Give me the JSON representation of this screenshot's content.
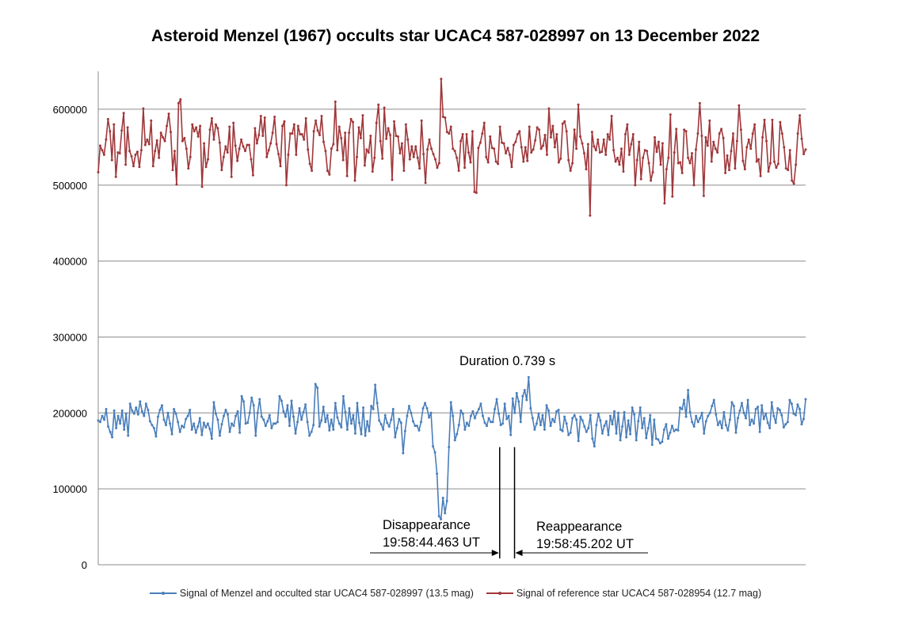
{
  "chart_data": {
    "type": "line",
    "title": "Asteroid Menzel (1967) occults star UCAC4 587-028997 on 13 December 2022",
    "ylim": [
      0,
      650000
    ],
    "yticks": [
      0,
      100000,
      200000,
      300000,
      400000,
      500000,
      600000
    ],
    "grid": true,
    "legend_position": "bottom",
    "series": [
      {
        "name": "Signal of Menzel and occulted star UCAC4 587-028997 (13.5 mag)",
        "color": "#4a7ebb",
        "values": [
          190000,
          188000,
          196000,
          191000,
          205000,
          182000,
          175000,
          168000,
          203000,
          180000,
          196000,
          186000,
          203000,
          178000,
          199000,
          170000,
          212000,
          203000,
          199000,
          207000,
          198000,
          215000,
          202000,
          196000,
          212000,
          204000,
          189000,
          184000,
          180000,
          169000,
          195000,
          204000,
          210000,
          191000,
          184000,
          200000,
          186000,
          172000,
          205000,
          199000,
          188000,
          175000,
          183000,
          181000,
          192000,
          196000,
          204000,
          178000,
          186000,
          174000,
          182000,
          193000,
          171000,
          187000,
          181000,
          186000,
          179000,
          166000,
          214000,
          199000,
          191000,
          170000,
          185000,
          196000,
          204000,
          198000,
          175000,
          186000,
          183000,
          196000,
          202000,
          174000,
          222000,
          215000,
          186000,
          187000,
          200000,
          220000,
          210000,
          170000,
          200000,
          218000,
          195000,
          191000,
          183000,
          189000,
          197000,
          180000,
          186000,
          186000,
          188000,
          222000,
          216000,
          202000,
          195000,
          210000,
          183000,
          216000,
          195000,
          173000,
          188000,
          206000,
          191000,
          201000,
          211000,
          188000,
          170000,
          175000,
          184000,
          238000,
          233000,
          182000,
          190000,
          208000,
          188000,
          197000,
          177000,
          191000,
          178000,
          213000,
          194000,
          186000,
          181000,
          222000,
          201000,
          178000,
          206000,
          186000,
          197000,
          173000,
          213000,
          187000,
          172000,
          207000,
          170000,
          189000,
          176000,
          209000,
          205000,
          237000,
          213000,
          190000,
          185000,
          178000,
          197000,
          187000,
          182000,
          191000,
          205000,
          168000,
          180000,
          192000,
          187000,
          147000,
          176000,
          196000,
          209000,
          200000,
          189000,
          183000,
          183000,
          177000,
          188000,
          206000,
          213000,
          206000,
          194000,
          200000,
          156000,
          148000,
          120000,
          64000,
          60000,
          88000,
          68000,
          84000,
          155000,
          214000,
          196000,
          164000,
          172000,
          184000,
          203000,
          199000,
          178000,
          187000,
          183000,
          196000,
          202000,
          193000,
          200000,
          205000,
          212000,
          196000,
          187000,
          183000,
          193000,
          188000,
          188000,
          205000,
          218000,
          199000,
          184000,
          186000,
          212000,
          192000,
          196000,
          171000,
          219000,
          200000,
          226000,
          215000,
          188000,
          222000,
          230000,
          217000,
          247000,
          206000,
          193000,
          178000,
          186000,
          199000,
          184000,
          197000,
          178000,
          210000,
          203000,
          183000,
          192000,
          188000,
          202000,
          204000,
          178000,
          176000,
          195000,
          186000,
          171000,
          174000,
          193000,
          197000,
          191000,
          163000,
          195000,
          190000,
          182000,
          175000,
          180000,
          197000,
          166000,
          156000,
          184000,
          199000,
          190000,
          173000,
          183000,
          189000,
          171000,
          196000,
          185000,
          202000,
          173000,
          200000,
          164000,
          182000,
          201000,
          168000,
          190000,
          172000,
          207000,
          198000,
          164000,
          189000,
          207000,
          180000,
          193000,
          167000,
          180000,
          197000,
          158000,
          191000,
          166000,
          165000,
          160000,
          162000,
          178000,
          185000,
          166000,
          174000,
          183000,
          176000,
          178000,
          177000,
          207000,
          205000,
          217000,
          195000,
          230000,
          201000,
          188000,
          182000,
          196000,
          188000,
          193000,
          200000,
          173000,
          189000,
          196000,
          200000,
          209000,
          217000,
          198000,
          184000,
          189000,
          180000,
          201000,
          184000,
          177000,
          191000,
          214000,
          209000,
          174000,
          193000,
          203000,
          213000,
          200000,
          193000,
          217000,
          184000,
          191000,
          186000,
          205000,
          208000,
          175000,
          210000,
          192000,
          199000,
          187000,
          180000,
          214000,
          196000,
          187000,
          206000,
          204000,
          197000,
          181000,
          185000,
          188000,
          217000,
          212000,
          199000,
          197000,
          211000,
          205000,
          185000,
          192000,
          218000
        ],
        "x_range": [
          0,
          1
        ]
      },
      {
        "name": "Signal of reference star UCAC4 587-028954 (12.7 mag)",
        "color": "#a0373a",
        "values": [
          517000,
          552000,
          546000,
          540000,
          560000,
          587000,
          571000,
          533000,
          580000,
          511000,
          543000,
          542000,
          572000,
          595000,
          527000,
          576000,
          545000,
          538000,
          525000,
          540000,
          544000,
          524000,
          546000,
          601000,
          553000,
          560000,
          554000,
          585000,
          525000,
          545000,
          559000,
          536000,
          569000,
          563000,
          558000,
          578000,
          594000,
          570000,
          520000,
          545000,
          501000,
          608000,
          613000,
          558000,
          562000,
          548000,
          522000,
          537000,
          580000,
          571000,
          576000,
          564000,
          578000,
          498000,
          555000,
          524000,
          534000,
          573000,
          588000,
          560000,
          580000,
          575000,
          556000,
          520000,
          537000,
          551000,
          543000,
          577000,
          511000,
          582000,
          552000,
          532000,
          548000,
          560000,
          551000,
          545000,
          553000,
          553000,
          534000,
          513000,
          575000,
          555000,
          566000,
          591000,
          565000,
          589000,
          537000,
          546000,
          555000,
          569000,
          590000,
          554000,
          541000,
          525000,
          578000,
          584000,
          500000,
          540000,
          568000,
          568000,
          580000,
          540000,
          578000,
          567000,
          567000,
          560000,
          588000,
          547000,
          528000,
          519000,
          571000,
          585000,
          572000,
          566000,
          591000,
          557000,
          545000,
          519000,
          514000,
          548000,
          554000,
          610000,
          546000,
          577000,
          562000,
          533000,
          569000,
          512000,
          569000,
          587000,
          583000,
          506000,
          537000,
          576000,
          562000,
          592000,
          526000,
          547000,
          543000,
          565000,
          518000,
          536000,
          582000,
          606000,
          558000,
          535000,
          602000,
          561000,
          575000,
          566000,
          507000,
          584000,
          565000,
          564000,
          542000,
          555000,
          519000,
          580000,
          560000,
          534000,
          551000,
          537000,
          551000,
          536000,
          522000,
          585000,
          541000,
          503000,
          547000,
          560000,
          548000,
          541000,
          534000,
          523000,
          529000,
          640000,
          590000,
          589000,
          570000,
          568000,
          577000,
          548000,
          545000,
          536000,
          519000,
          558000,
          567000,
          523000,
          567000,
          543000,
          530000,
          571000,
          491000,
          490000,
          549000,
          556000,
          568000,
          582000,
          537000,
          530000,
          564000,
          549000,
          548000,
          531000,
          528000,
          577000,
          556000,
          555000,
          542000,
          549000,
          540000,
          524000,
          553000,
          557000,
          567000,
          571000,
          550000,
          531000,
          550000,
          532000,
          577000,
          543000,
          547000,
          559000,
          576000,
          573000,
          548000,
          552000,
          566000,
          540000,
          601000,
          563000,
          578000,
          550000,
          567000,
          530000,
          535000,
          581000,
          584000,
          571000,
          533000,
          519000,
          529000,
          573000,
          548000,
          606000,
          564000,
          555000,
          542000,
          521000,
          554000,
          460000,
          570000,
          551000,
          546000,
          560000,
          543000,
          544000,
          560000,
          540000,
          567000,
          560000,
          591000,
          546000,
          531000,
          536000,
          527000,
          548000,
          518000,
          567000,
          580000,
          540000,
          554000,
          567000,
          500000,
          533000,
          557000,
          508000,
          536000,
          546000,
          545000,
          529000,
          506000,
          517000,
          563000,
          544000,
          557000,
          527000,
          555000,
          476000,
          521000,
          536000,
          593000,
          485000,
          543000,
          574000,
          529000,
          530000,
          516000,
          573000,
          571000,
          536000,
          529000,
          542000,
          500000,
          547000,
          568000,
          608000,
          565000,
          486000,
          563000,
          552000,
          585000,
          531000,
          557000,
          548000,
          543000,
          568000,
          574000,
          562000,
          516000,
          539000,
          520000,
          545000,
          568000,
          522000,
          558000,
          605000,
          573000,
          532000,
          521000,
          550000,
          560000,
          548000,
          568000,
          580000,
          531000,
          534000,
          512000,
          563000,
          586000,
          558000,
          518000,
          529000,
          586000,
          531000,
          523000,
          528000,
          583000,
          568000,
          550000,
          522000,
          520000,
          546000,
          506000,
          502000,
          527000,
          568000,
          592000,
          561000,
          541000,
          547000
        ],
        "x_range": [
          0,
          1
        ]
      }
    ],
    "annotations": {
      "duration": "Duration 0.739 s",
      "disappearance_label": "Disappearance",
      "disappearance_time": "19:58:44.463 UT",
      "reappearance_label": "Reappearance",
      "reappearance_time": "19:58:45.202 UT",
      "disappearance_pos": 0.5675,
      "reappearance_pos": 0.5885,
      "marker_top_value": 155000
    }
  }
}
